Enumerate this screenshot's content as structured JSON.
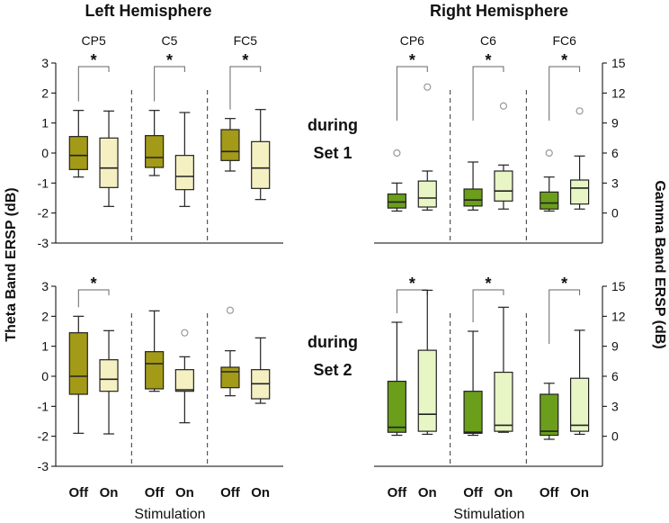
{
  "figure": {
    "hemisphere_titles": [
      "Left Hemisphere",
      "Right Hemisphere"
    ],
    "row_labels": [
      {
        "line1": "during",
        "line2": "Set 1"
      },
      {
        "line1": "during",
        "line2": "Set 2"
      }
    ],
    "ylabel_left": "Theta Band ERSP (dB)",
    "ylabel_right": "Gamma Band ERSP (dB)",
    "xlabel": "Stimulation",
    "condition_labels": [
      "Off",
      "On"
    ],
    "significance_marker": "*"
  },
  "colors": {
    "theta_off": "#a39a18",
    "theta_on": "#f5f0c2",
    "gamma_off": "#6b9e1a",
    "gamma_on": "#e8f5c4",
    "stroke": "#222222",
    "outlier": "#999999"
  },
  "chart_data": [
    {
      "type": "box",
      "title": "Left Hemisphere",
      "row": "during Set 1",
      "ylabel": "Theta Band ERSP (dB)",
      "ylim": [
        -3,
        3
      ],
      "yticks": [
        -3,
        -2,
        -1,
        0,
        1,
        2,
        3
      ],
      "groups": [
        {
          "name": "CP5",
          "significant": true,
          "boxes": [
            {
              "condition": "Off",
              "whisker_low": -0.8,
              "q1": -0.55,
              "median": -0.08,
              "q3": 0.55,
              "whisker_high": 1.42,
              "outliers": []
            },
            {
              "condition": "On",
              "whisker_low": -1.78,
              "q1": -1.15,
              "median": -0.5,
              "q3": 0.5,
              "whisker_high": 1.4,
              "outliers": []
            }
          ]
        },
        {
          "name": "C5",
          "significant": true,
          "boxes": [
            {
              "condition": "Off",
              "whisker_low": -0.75,
              "q1": -0.48,
              "median": -0.15,
              "q3": 0.58,
              "whisker_high": 1.42,
              "outliers": []
            },
            {
              "condition": "On",
              "whisker_low": -1.78,
              "q1": -1.22,
              "median": -0.78,
              "q3": -0.08,
              "whisker_high": 1.35,
              "outliers": []
            }
          ]
        },
        {
          "name": "FC5",
          "significant": true,
          "boxes": [
            {
              "condition": "Off",
              "whisker_low": -0.6,
              "q1": -0.25,
              "median": 0.05,
              "q3": 0.78,
              "whisker_high": 1.15,
              "outliers": []
            },
            {
              "condition": "On",
              "whisker_low": -1.55,
              "q1": -1.18,
              "median": -0.5,
              "q3": 0.38,
              "whisker_high": 1.45,
              "outliers": []
            }
          ]
        }
      ]
    },
    {
      "type": "box",
      "title": "Right Hemisphere",
      "row": "during Set 1",
      "ylabel": "Gamma Band ERSP (dB)",
      "ylim": [
        -3,
        15
      ],
      "yticks": [
        0,
        3,
        6,
        9,
        12,
        15
      ],
      "groups": [
        {
          "name": "CP6",
          "significant": true,
          "boxes": [
            {
              "condition": "Off",
              "whisker_low": 0.2,
              "q1": 0.5,
              "median": 1.1,
              "q3": 1.9,
              "whisker_high": 3.0,
              "outliers": [
                6.0
              ]
            },
            {
              "condition": "On",
              "whisker_low": 0.3,
              "q1": 0.6,
              "median": 1.5,
              "q3": 3.2,
              "whisker_high": 4.2,
              "outliers": [
                12.6
              ]
            }
          ]
        },
        {
          "name": "C6",
          "significant": true,
          "boxes": [
            {
              "condition": "Off",
              "whisker_low": 0.3,
              "q1": 0.7,
              "median": 1.3,
              "q3": 2.4,
              "whisker_high": 5.1,
              "outliers": []
            },
            {
              "condition": "On",
              "whisker_low": 0.4,
              "q1": 1.2,
              "median": 2.2,
              "q3": 4.2,
              "whisker_high": 4.8,
              "outliers": [
                10.7
              ]
            }
          ]
        },
        {
          "name": "FC6",
          "significant": true,
          "boxes": [
            {
              "condition": "Off",
              "whisker_low": 0.2,
              "q1": 0.4,
              "median": 1.0,
              "q3": 2.1,
              "whisker_high": 3.6,
              "outliers": [
                6.0
              ]
            },
            {
              "condition": "On",
              "whisker_low": 0.4,
              "q1": 0.9,
              "median": 2.5,
              "q3": 3.3,
              "whisker_high": 5.7,
              "outliers": [
                10.2
              ]
            }
          ]
        }
      ]
    },
    {
      "type": "box",
      "title": "Left Hemisphere",
      "row": "during Set 2",
      "ylabel": "Theta Band ERSP (dB)",
      "ylim": [
        -3,
        3
      ],
      "yticks": [
        -3,
        -2,
        -1,
        0,
        1,
        2,
        3
      ],
      "groups": [
        {
          "name": "CP5",
          "significant": true,
          "boxes": [
            {
              "condition": "Off",
              "whisker_low": -1.9,
              "q1": -0.6,
              "median": 0.0,
              "q3": 1.45,
              "whisker_high": 2.0,
              "outliers": []
            },
            {
              "condition": "On",
              "whisker_low": -1.92,
              "q1": -0.5,
              "median": -0.1,
              "q3": 0.55,
              "whisker_high": 1.52,
              "outliers": []
            }
          ]
        },
        {
          "name": "C5",
          "significant": false,
          "boxes": [
            {
              "condition": "Off",
              "whisker_low": -0.5,
              "q1": -0.42,
              "median": 0.42,
              "q3": 0.82,
              "whisker_high": 2.18,
              "outliers": []
            },
            {
              "condition": "On",
              "whisker_low": -1.55,
              "q1": -0.5,
              "median": -0.45,
              "q3": 0.22,
              "whisker_high": 0.65,
              "outliers": [
                1.45
              ]
            }
          ]
        },
        {
          "name": "FC5",
          "significant": false,
          "boxes": [
            {
              "condition": "Off",
              "whisker_low": -0.65,
              "q1": -0.38,
              "median": 0.15,
              "q3": 0.3,
              "whisker_high": 0.85,
              "outliers": [
                2.2
              ]
            },
            {
              "condition": "On",
              "whisker_low": -0.9,
              "q1": -0.75,
              "median": -0.25,
              "q3": 0.22,
              "whisker_high": 1.28,
              "outliers": []
            }
          ]
        }
      ]
    },
    {
      "type": "box",
      "title": "Right Hemisphere",
      "row": "during Set 2",
      "ylabel": "Gamma Band ERSP (dB)",
      "ylim": [
        -3,
        15
      ],
      "yticks": [
        0,
        3,
        6,
        9,
        12,
        15
      ],
      "groups": [
        {
          "name": "CP6",
          "significant": true,
          "boxes": [
            {
              "condition": "Off",
              "whisker_low": 0.1,
              "q1": 0.4,
              "median": 0.9,
              "q3": 5.5,
              "whisker_high": 11.4,
              "outliers": []
            },
            {
              "condition": "On",
              "whisker_low": 0.2,
              "q1": 0.5,
              "median": 2.2,
              "q3": 8.6,
              "whisker_high": 14.6,
              "outliers": []
            }
          ]
        },
        {
          "name": "C6",
          "significant": true,
          "boxes": [
            {
              "condition": "Off",
              "whisker_low": 0.1,
              "q1": 0.3,
              "median": 0.4,
              "q3": 4.5,
              "whisker_high": 10.5,
              "outliers": []
            },
            {
              "condition": "On",
              "whisker_low": 0.4,
              "q1": 0.5,
              "median": 1.1,
              "q3": 6.4,
              "whisker_high": 12.9,
              "outliers": []
            }
          ]
        },
        {
          "name": "FC6",
          "significant": true,
          "boxes": [
            {
              "condition": "Off",
              "whisker_low": -0.3,
              "q1": 0.1,
              "median": 0.5,
              "q3": 4.2,
              "whisker_high": 5.3,
              "outliers": []
            },
            {
              "condition": "On",
              "whisker_low": 0.2,
              "q1": 0.5,
              "median": 1.1,
              "q3": 5.8,
              "whisker_high": 10.6,
              "outliers": []
            }
          ]
        }
      ]
    }
  ]
}
